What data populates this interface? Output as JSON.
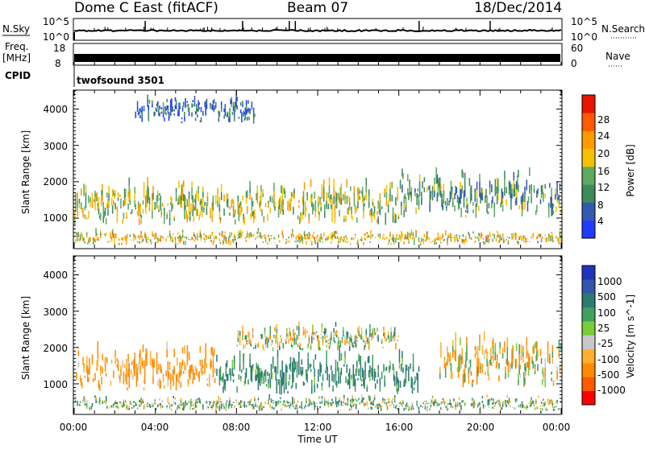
{
  "header": {
    "station": "Dome C East (fitACF)",
    "beam": "Beam 07",
    "date": "18/Dec/2014"
  },
  "noise_panel": {
    "left_label": "N.Sky",
    "right_label": "N.Search",
    "left_ticks": [
      "10^5",
      "10^0"
    ],
    "right_ticks": [
      "10^5",
      "10^0"
    ]
  },
  "freq_panel": {
    "left_label_top": "Freq.",
    "left_label_bottom": "[MHz]",
    "right_label": "Nave",
    "left_ticks": [
      "18",
      "8"
    ],
    "right_ticks": [
      "60",
      "0"
    ]
  },
  "cpid": {
    "label": "CPID",
    "value": "twofsound 3501"
  },
  "colors": {
    "power": [
      "#1e3cff",
      "#3358b0",
      "#3d8a5c",
      "#5fa860",
      "#f2c200",
      "#ff9a00",
      "#ff5a00",
      "#e81400"
    ],
    "velocity": [
      "#ff0000",
      "#ff5a00",
      "#ff8c00",
      "#ffaf2d",
      "#c8c8c8",
      "#7acc3a",
      "#3fa060",
      "#2d7a70",
      "#3355aa",
      "#2233bb"
    ]
  },
  "chart_data": [
    {
      "type": "heatmap",
      "title": "",
      "xlabel": "",
      "ylabel": "Slant Range [km]",
      "x_ticks": [
        "00:00",
        "04:00",
        "08:00",
        "12:00",
        "16:00",
        "20:00",
        "00:00"
      ],
      "y_ticks": [
        "1000",
        "2000",
        "3000",
        "4000"
      ],
      "xlim": [
        0,
        24
      ],
      "ylim": [
        180,
        4500
      ],
      "colorbar": {
        "label": "Power [dB]",
        "range": [
          0,
          30
        ],
        "ticks": [
          "4",
          "8",
          "12",
          "16",
          "20",
          "24",
          "28"
        ]
      },
      "echo_bands": [
        {
          "t_start": 0.0,
          "t_end": 24.0,
          "range_low": 250,
          "range_high": 650,
          "power": 18
        },
        {
          "t_start": 0.0,
          "t_end": 16.0,
          "range_low": 800,
          "range_high": 2000,
          "power": 16
        },
        {
          "t_start": 16.0,
          "t_end": 24.0,
          "range_low": 1000,
          "range_high": 2300,
          "power": 11
        },
        {
          "t_start": 3.0,
          "t_end": 9.0,
          "range_low": 3600,
          "range_high": 4400,
          "power": 6
        }
      ]
    },
    {
      "type": "heatmap",
      "title": "",
      "xlabel": "Time UT",
      "ylabel": "Slant Range [km]",
      "x_ticks": [
        "00:00",
        "04:00",
        "08:00",
        "12:00",
        "16:00",
        "20:00",
        "00:00"
      ],
      "y_ticks": [
        "1000",
        "2000",
        "3000",
        "4000"
      ],
      "xlim": [
        0,
        24
      ],
      "ylim": [
        180,
        4500
      ],
      "colorbar": {
        "label": "Velocity [m s^-1]",
        "ticks": [
          "1000",
          "500",
          "100",
          "25",
          "-25",
          "-100",
          "-500",
          "-1000"
        ]
      },
      "echo_bands": [
        {
          "t_start": 0.0,
          "t_end": 24.0,
          "range_low": 250,
          "range_high": 650,
          "velocity": 50
        },
        {
          "t_start": 0.0,
          "t_end": 7.0,
          "range_low": 800,
          "range_high": 2000,
          "velocity": -150
        },
        {
          "t_start": 7.0,
          "t_end": 17.0,
          "range_low": 700,
          "range_high": 1900,
          "velocity": 150
        },
        {
          "t_start": 8.0,
          "t_end": 16.0,
          "range_low": 1900,
          "range_high": 2600,
          "velocity": 0
        },
        {
          "t_start": 18.0,
          "t_end": 24.0,
          "range_low": 900,
          "range_high": 2300,
          "velocity": -60
        }
      ]
    }
  ]
}
